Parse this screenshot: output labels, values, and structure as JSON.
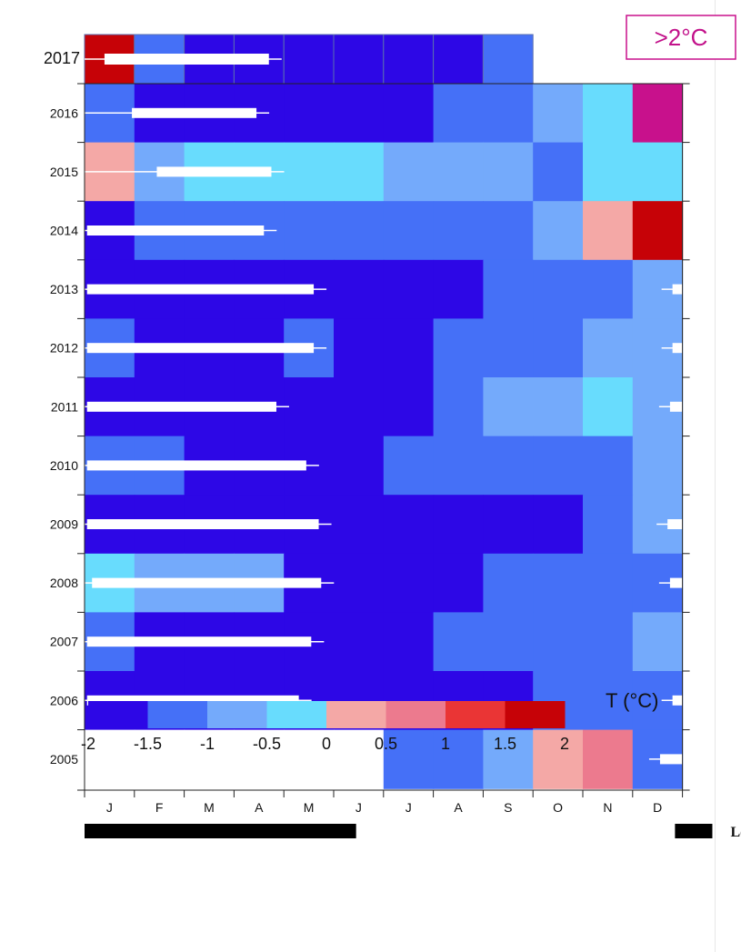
{
  "chart_data": {
    "type": "heatmap",
    "x": [
      "J",
      "F",
      "M",
      "A",
      "M",
      "J",
      "J",
      "A",
      "S",
      "O",
      "N",
      "D"
    ],
    "y": [
      "2017",
      "2016",
      "2015",
      "2014",
      "2013",
      "2012",
      "2011",
      "2010",
      "2009",
      "2008",
      "2007",
      "2006",
      "2005"
    ],
    "z": [
      [
        1.75,
        -1.25,
        -1.75,
        -1.75,
        -1.75,
        -1.75,
        -1.75,
        -1.75,
        -1.25,
        null,
        null,
        null
      ],
      [
        -1.25,
        -1.75,
        -1.75,
        -1.75,
        -1.75,
        -1.75,
        -1.75,
        -1.5,
        -1.5,
        -0.75,
        -0.25,
        2.5
      ],
      [
        0.25,
        -1.0,
        -0.25,
        -0.25,
        -0.25,
        -0.25,
        -0.75,
        -0.75,
        -0.75,
        -1.5,
        -0.25,
        -0.25
      ],
      [
        -1.75,
        -1.25,
        -1.25,
        -1.25,
        -1.25,
        -1.25,
        -1.25,
        -1.25,
        -1.25,
        -0.75,
        0.25,
        1.75
      ],
      [
        -1.75,
        -1.75,
        -1.75,
        -1.75,
        -1.75,
        -1.75,
        -1.75,
        -1.75,
        -1.5,
        -1.5,
        -1.5,
        -1.0
      ],
      [
        -1.5,
        -1.75,
        -1.75,
        -1.75,
        -1.5,
        -1.75,
        -1.75,
        -1.5,
        -1.5,
        -1.5,
        -1.0,
        -1.0
      ],
      [
        -1.75,
        -1.75,
        -1.75,
        -1.75,
        -1.75,
        -1.75,
        -1.75,
        -1.5,
        -0.75,
        -0.75,
        -0.25,
        -1.0
      ],
      [
        -1.5,
        -1.5,
        -1.75,
        -1.75,
        -1.75,
        -1.75,
        -1.5,
        -1.5,
        -1.5,
        -1.5,
        -1.5,
        -1.0
      ],
      [
        -1.75,
        -1.75,
        -1.75,
        -1.75,
        -1.75,
        -1.75,
        -1.75,
        -1.75,
        -1.75,
        -1.75,
        -1.5,
        -1.0
      ],
      [
        -0.25,
        -1.0,
        -1.0,
        -1.0,
        -1.75,
        -1.75,
        -1.75,
        -1.75,
        -1.5,
        -1.5,
        -1.5,
        -1.5
      ],
      [
        -1.5,
        -1.75,
        -1.75,
        -1.75,
        -1.75,
        -1.75,
        -1.75,
        -1.5,
        -1.5,
        -1.5,
        -1.5,
        -1.0
      ],
      [
        -1.75,
        -1.75,
        -1.75,
        -1.75,
        -1.75,
        -1.75,
        -1.75,
        -1.75,
        -1.75,
        -1.5,
        -1.5,
        -1.5
      ],
      [
        null,
        null,
        null,
        null,
        null,
        null,
        -1.5,
        -1.5,
        -1.0,
        0.25,
        0.75,
        -1.5
      ]
    ],
    "ice_duration_months": [
      [
        0.4,
        3.7
      ],
      [
        0.95,
        3.45
      ],
      [
        1.45,
        3.75
      ],
      [
        0.05,
        3.6
      ],
      [
        0.05,
        4.6
      ],
      [
        0.05,
        4.6
      ],
      [
        0.05,
        3.85
      ],
      [
        0.05,
        4.45
      ],
      [
        0.05,
        4.7
      ],
      [
        0.15,
        4.75
      ],
      [
        0.05,
        4.55
      ],
      [
        0.05,
        4.3
      ],
      null
    ],
    "ice_duration_december": [
      null,
      null,
      null,
      null,
      0.8,
      0.8,
      0.75,
      null,
      0.7,
      0.75,
      null,
      0.8,
      0.55
    ],
    "colorbar": {
      "label": "T (°C)",
      "ticks": [
        "-2",
        "-1.5",
        "-1",
        "-0.5",
        "0",
        "0.5",
        "1",
        "1.5",
        "2"
      ],
      "colors": [
        "#2d07e6",
        "#4570f7",
        "#74aafb",
        "#68dcfd",
        "#f4a8a6",
        "#ec7a8e",
        "#ea3535",
        "#c60207"
      ],
      "overflow_label": ">2°C",
      "overflow_color": "#c8118c",
      "missing_color": "#ffffff"
    },
    "bottom_bars": [
      {
        "label": "",
        "start_month": 0,
        "end_month": 5.45
      },
      {
        "label": "Lon",
        "start_month": 11.85,
        "end_month": 12.6
      }
    ]
  }
}
